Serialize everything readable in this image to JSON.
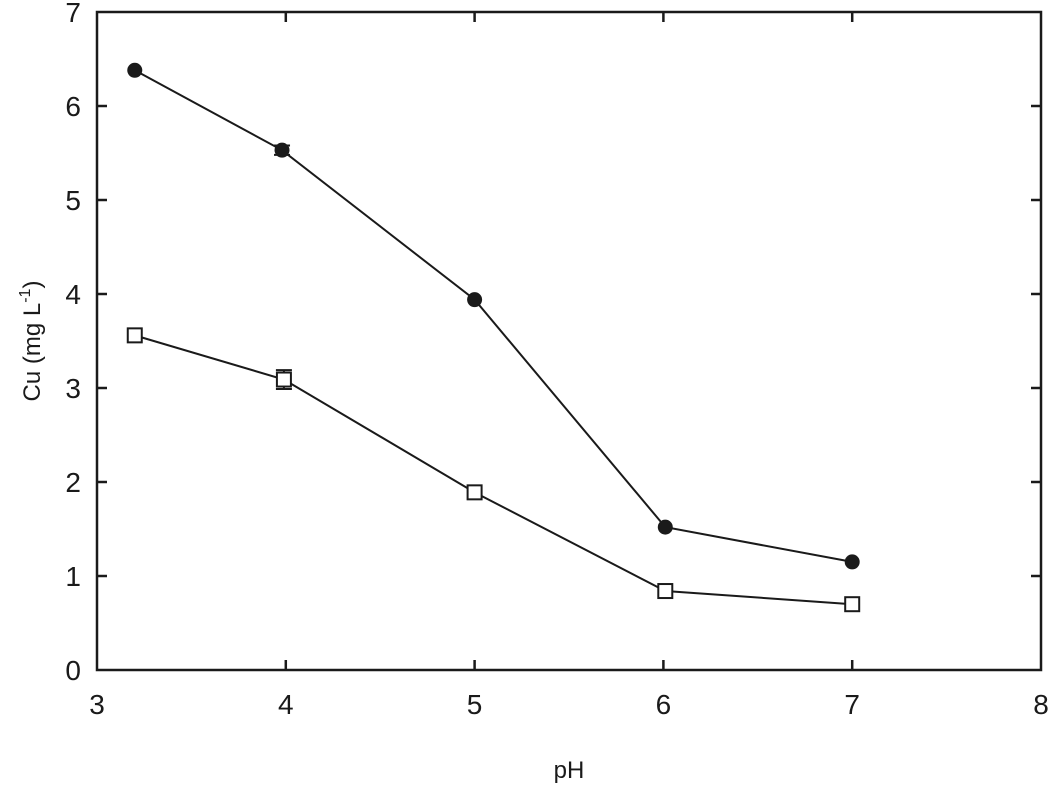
{
  "chart_data": {
    "type": "line",
    "title": "",
    "xlabel": "pH",
    "ylabel": "Cu (mg L-1)",
    "ylabel_parts": {
      "main": "Cu (mg L",
      "sup": "-1",
      "close": ")"
    },
    "xlim": [
      3,
      8
    ],
    "ylim": [
      0,
      7
    ],
    "xticks": [
      3,
      4,
      5,
      6,
      7,
      8
    ],
    "yticks": [
      0,
      1,
      2,
      3,
      4,
      5,
      6,
      7
    ],
    "grid": false,
    "legend": null,
    "series": [
      {
        "name": "filled circles",
        "marker": "filled-circle",
        "color": "#1a1a1a",
        "x": [
          3.2,
          3.98,
          5.0,
          6.01,
          7.0
        ],
        "values": [
          6.38,
          5.53,
          3.94,
          1.52,
          1.15
        ],
        "errors": [
          0,
          0.05,
          0,
          0,
          0
        ]
      },
      {
        "name": "open squares",
        "marker": "open-square",
        "color": "#1a1a1a",
        "x": [
          3.2,
          3.99,
          5.0,
          6.01,
          7.0
        ],
        "values": [
          3.56,
          3.09,
          1.89,
          0.84,
          0.7
        ],
        "errors": [
          0,
          0.1,
          0,
          0,
          0
        ]
      }
    ]
  }
}
